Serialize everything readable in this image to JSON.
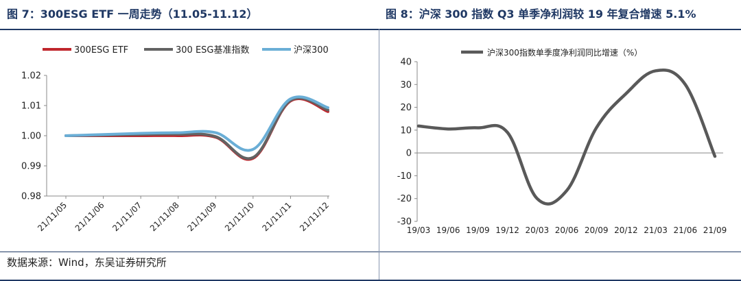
{
  "left_title": "图 7：300ESG ETF 一周走势（11.05-11.12）",
  "right_title": "图 8：沪深 300 指数 Q3 单季净利润较 19 年复合增速 5.1%",
  "source": "数据来源：Wind，东吴证券研究所",
  "colors": {
    "navy": "#1f3864",
    "etf": "#c0272d",
    "benchmark": "#636363",
    "hs300": "#6aaed6",
    "profit": "#595959"
  },
  "chart_data": [
    {
      "type": "line",
      "title": "300ESG ETF 一周走势（11.05-11.12）",
      "xlabel": "",
      "ylabel": "",
      "ylim": [
        0.98,
        1.02
      ],
      "yticks": [
        "0.98",
        "0.99",
        "1.00",
        "1.01",
        "1.02"
      ],
      "categories": [
        "21/11/05",
        "21/11/06",
        "21/11/07",
        "21/11/08",
        "21/11/09",
        "21/11/10",
        "21/11/11",
        "21/11/12"
      ],
      "legend": [
        "300ESG ETF",
        "300 ESG基准指数",
        "沪深300"
      ],
      "series": [
        {
          "name": "300ESG ETF",
          "values": [
            1.0,
            1.0,
            1.0,
            1.0,
            0.9995,
            0.9925,
            1.0115,
            1.008
          ]
        },
        {
          "name": "300 ESG基准指数",
          "values": [
            1.0,
            1.0002,
            1.0004,
            1.0005,
            0.9997,
            0.9928,
            1.0117,
            1.0085
          ]
        },
        {
          "name": "沪深300",
          "values": [
            1.0,
            1.0004,
            1.0008,
            1.001,
            1.001,
            0.9955,
            1.0122,
            1.0093
          ]
        }
      ]
    },
    {
      "type": "line",
      "title": "沪深300指数单季度净利润同比增速（%）",
      "xlabel": "",
      "ylabel": "",
      "ylim": [
        -30,
        40
      ],
      "yticks": [
        "-30",
        "-20",
        "-10",
        "0",
        "10",
        "20",
        "30",
        "40"
      ],
      "categories": [
        "19/03",
        "19/06",
        "19/09",
        "19/12",
        "20/03",
        "20/06",
        "20/09",
        "20/12",
        "21/03",
        "21/06",
        "21/09"
      ],
      "legend": [
        "沪深300指数单季度净利润同比增速（%）"
      ],
      "series": [
        {
          "name": "沪深300指数单季度净利润同比增速（%）",
          "values": [
            11.8,
            10.5,
            11.0,
            9.0,
            -20.0,
            -16.5,
            11.0,
            26.0,
            36.0,
            30.0,
            -1.5
          ]
        }
      ]
    }
  ]
}
